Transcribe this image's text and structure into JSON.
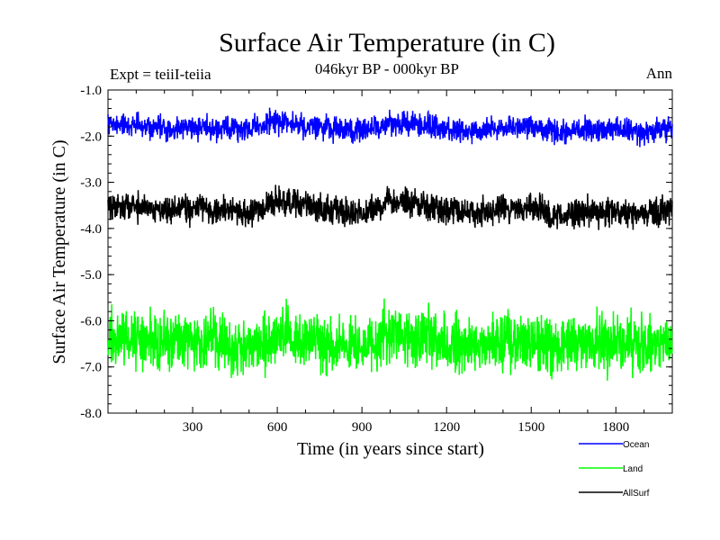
{
  "chart_data": {
    "type": "line",
    "title": "Surface Air Temperature (in C)",
    "subtitle": "046kyr BP - 000kyr BP",
    "experiment_label": "Expt = teiiI-teiia",
    "season_label": "Ann",
    "xlabel": "Time (in years since start)",
    "ylabel": "Surface Air Temperature (in C)",
    "xlim": [
      0,
      2000
    ],
    "ylim": [
      -8.0,
      -1.0
    ],
    "x_ticks": [
      300,
      600,
      900,
      1200,
      1500,
      1800
    ],
    "x_tick_labels": [
      "300",
      "600",
      "900",
      "1200",
      "1500",
      "1800"
    ],
    "y_ticks": [
      -1.0,
      -2.0,
      -3.0,
      -4.0,
      -5.0,
      -6.0,
      -7.0,
      -8.0
    ],
    "y_tick_labels": [
      "-1.0",
      "-2.0",
      "-3.0",
      "-4.0",
      "-5.0",
      "-6.0",
      "-7.0",
      "-8.0"
    ],
    "grid": false,
    "legend_position": "bottom-right",
    "series": [
      {
        "name": "Ocean",
        "color": "#0000ff",
        "mean": -1.8,
        "noise_amplitude": 0.25,
        "x": [
          0,
          100,
          200,
          300,
          400,
          500,
          600,
          700,
          800,
          900,
          1000,
          1100,
          1200,
          1300,
          1400,
          1500,
          1600,
          1700,
          1800,
          1900,
          2000
        ],
        "values": [
          -1.75,
          -1.78,
          -1.82,
          -1.8,
          -1.83,
          -1.85,
          -1.7,
          -1.78,
          -1.85,
          -1.88,
          -1.72,
          -1.76,
          -1.85,
          -1.88,
          -1.84,
          -1.8,
          -1.92,
          -1.86,
          -1.88,
          -1.9,
          -1.85
        ]
      },
      {
        "name": "Land",
        "color": "#00ff00",
        "mean": -6.45,
        "noise_amplitude": 0.6,
        "x": [
          0,
          100,
          200,
          300,
          400,
          500,
          600,
          700,
          800,
          900,
          1000,
          1100,
          1200,
          1300,
          1400,
          1500,
          1600,
          1700,
          1800,
          1900,
          2000
        ],
        "values": [
          -6.4,
          -6.38,
          -6.42,
          -6.4,
          -6.45,
          -6.55,
          -6.3,
          -6.4,
          -6.52,
          -6.6,
          -6.3,
          -6.35,
          -6.5,
          -6.55,
          -6.45,
          -6.42,
          -6.6,
          -6.48,
          -6.5,
          -6.55,
          -6.5
        ]
      },
      {
        "name": "AllSurf",
        "color": "#000000",
        "mean": -3.6,
        "noise_amplitude": 0.3,
        "x": [
          0,
          100,
          200,
          300,
          400,
          500,
          600,
          700,
          800,
          900,
          1000,
          1100,
          1200,
          1300,
          1400,
          1500,
          1600,
          1700,
          1800,
          1900,
          2000
        ],
        "values": [
          -3.5,
          -3.52,
          -3.58,
          -3.55,
          -3.6,
          -3.68,
          -3.4,
          -3.5,
          -3.62,
          -3.7,
          -3.42,
          -3.48,
          -3.62,
          -3.68,
          -3.6,
          -3.55,
          -3.72,
          -3.62,
          -3.65,
          -3.68,
          -3.62
        ]
      }
    ]
  }
}
